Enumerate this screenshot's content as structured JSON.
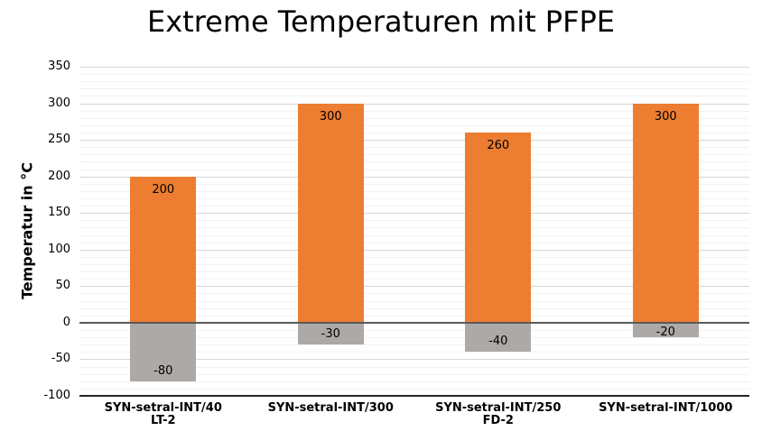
{
  "chart_data": {
    "type": "bar",
    "title": "Extreme Temperaturen mit PFPE",
    "ylabel": "Temperatur in °C",
    "xlabel": "",
    "ylim": [
      -100,
      350
    ],
    "y_tick_step": 50,
    "y_minor_step": 10,
    "grid": "horizontal major+minor",
    "legend": "none",
    "bar_labels": "inside-end",
    "categories": [
      "SYN-setral-INT/40\nLT-2",
      "SYN-setral-INT/300",
      "SYN-setral-INT/250\nFD-2",
      "SYN-setral-INT/1000"
    ],
    "series": [
      {
        "name": "upper-temperature-limit",
        "color": "#ED7D31",
        "values": [
          200,
          300,
          260,
          300
        ]
      },
      {
        "name": "lower-temperature-limit",
        "color": "#ACA9A6",
        "values": [
          -80,
          -30,
          -40,
          -20
        ]
      }
    ],
    "colors": {
      "grid_major": "#D6D6D6",
      "grid_minor": "#F2F2F2",
      "zero_line": "#595959",
      "axis_line": "#262626",
      "text": "#000000",
      "background": "#FFFFFF"
    }
  }
}
